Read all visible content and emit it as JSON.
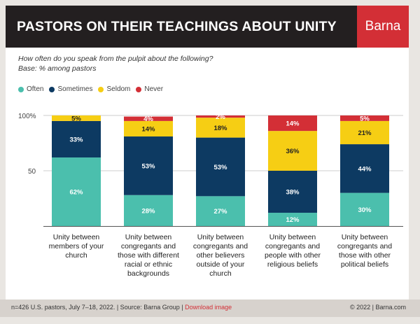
{
  "header": {
    "title": "PASTORS ON THEIR TEACHINGS ABOUT UNITY",
    "brand": "Barna"
  },
  "subtitle": {
    "question": "How often do you speak from the pulpit about the following?",
    "base": "Base: % among pastors"
  },
  "colors": {
    "Often": "#4bbfad",
    "Sometimes": "#0d3a62",
    "Seldom": "#f6ce14",
    "Never": "#d32f36"
  },
  "chart_data": {
    "type": "bar",
    "stacked": true,
    "categories": [
      "Unity between members of your church",
      "Unity between congregants and those with different racial or ethnic backgrounds",
      "Unity between congregants and other believers outside of your church",
      "Unity between congregants and people with other religious beliefs",
      "Unity between congregants and those with other political beliefs"
    ],
    "series": [
      {
        "name": "Often",
        "values": [
          62,
          28,
          27,
          12,
          30
        ],
        "labels": [
          "62%",
          "28%",
          "27%",
          "12%",
          "30%"
        ]
      },
      {
        "name": "Sometimes",
        "values": [
          33,
          53,
          53,
          38,
          44
        ],
        "labels": [
          "33%",
          "53%",
          "53%",
          "38%",
          "44%"
        ]
      },
      {
        "name": "Seldom",
        "values": [
          5,
          14,
          18,
          36,
          21
        ],
        "labels": [
          "5%",
          "14%",
          "18%",
          "36%",
          "21%"
        ]
      },
      {
        "name": "Never",
        "values": [
          0,
          4,
          2,
          14,
          5
        ],
        "labels": [
          "",
          "4%",
          "2%",
          "14%",
          "5%"
        ]
      }
    ],
    "yticks": [
      "50",
      "100%"
    ],
    "ylim": [
      0,
      100
    ]
  },
  "footer": {
    "source": "n=426 U.S. pastors, July 7–18, 2022. | Source: Barna Group | ",
    "download": "Download image",
    "copyright": "© 2022 | Barna.com"
  }
}
